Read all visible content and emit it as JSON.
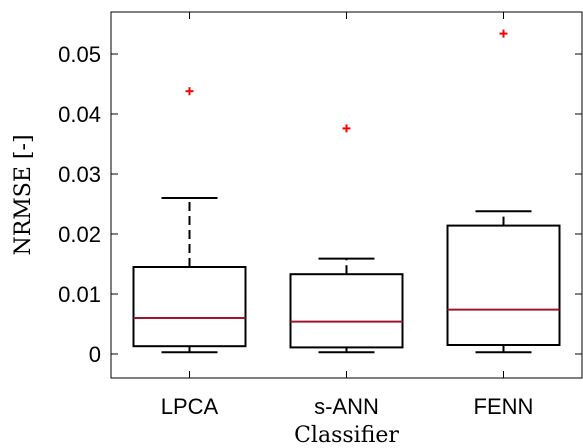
{
  "chart_data": {
    "type": "boxplot",
    "xlabel": "Classifier",
    "ylabel": "NRMSE [-]",
    "categories": [
      "LPCA",
      "s-ANN",
      "FENN"
    ],
    "ylim": [
      -0.004,
      0.057
    ],
    "yticks": [
      0,
      0.01,
      0.02,
      0.03,
      0.04,
      0.05
    ],
    "ytick_labels": [
      "0",
      "0.01",
      "0.02",
      "0.03",
      "0.04",
      "0.05"
    ],
    "boxes": [
      {
        "label": "LPCA",
        "whisker_low": 0.0003,
        "q1": 0.0013,
        "median": 0.006,
        "q3": 0.0145,
        "whisker_high": 0.026,
        "outliers": [
          0.0438
        ]
      },
      {
        "label": "s-ANN",
        "whisker_low": 0.0003,
        "q1": 0.0011,
        "median": 0.0054,
        "q3": 0.0133,
        "whisker_high": 0.0159,
        "outliers": [
          0.0376
        ]
      },
      {
        "label": "FENN",
        "whisker_low": 0.0003,
        "q1": 0.0015,
        "median": 0.0074,
        "q3": 0.0214,
        "whisker_high": 0.0238,
        "outliers": [
          0.0534
        ]
      }
    ],
    "grid": false,
    "colors": {
      "box": "#000000",
      "median": "#a2142f",
      "outlier": "#ff0000"
    }
  }
}
